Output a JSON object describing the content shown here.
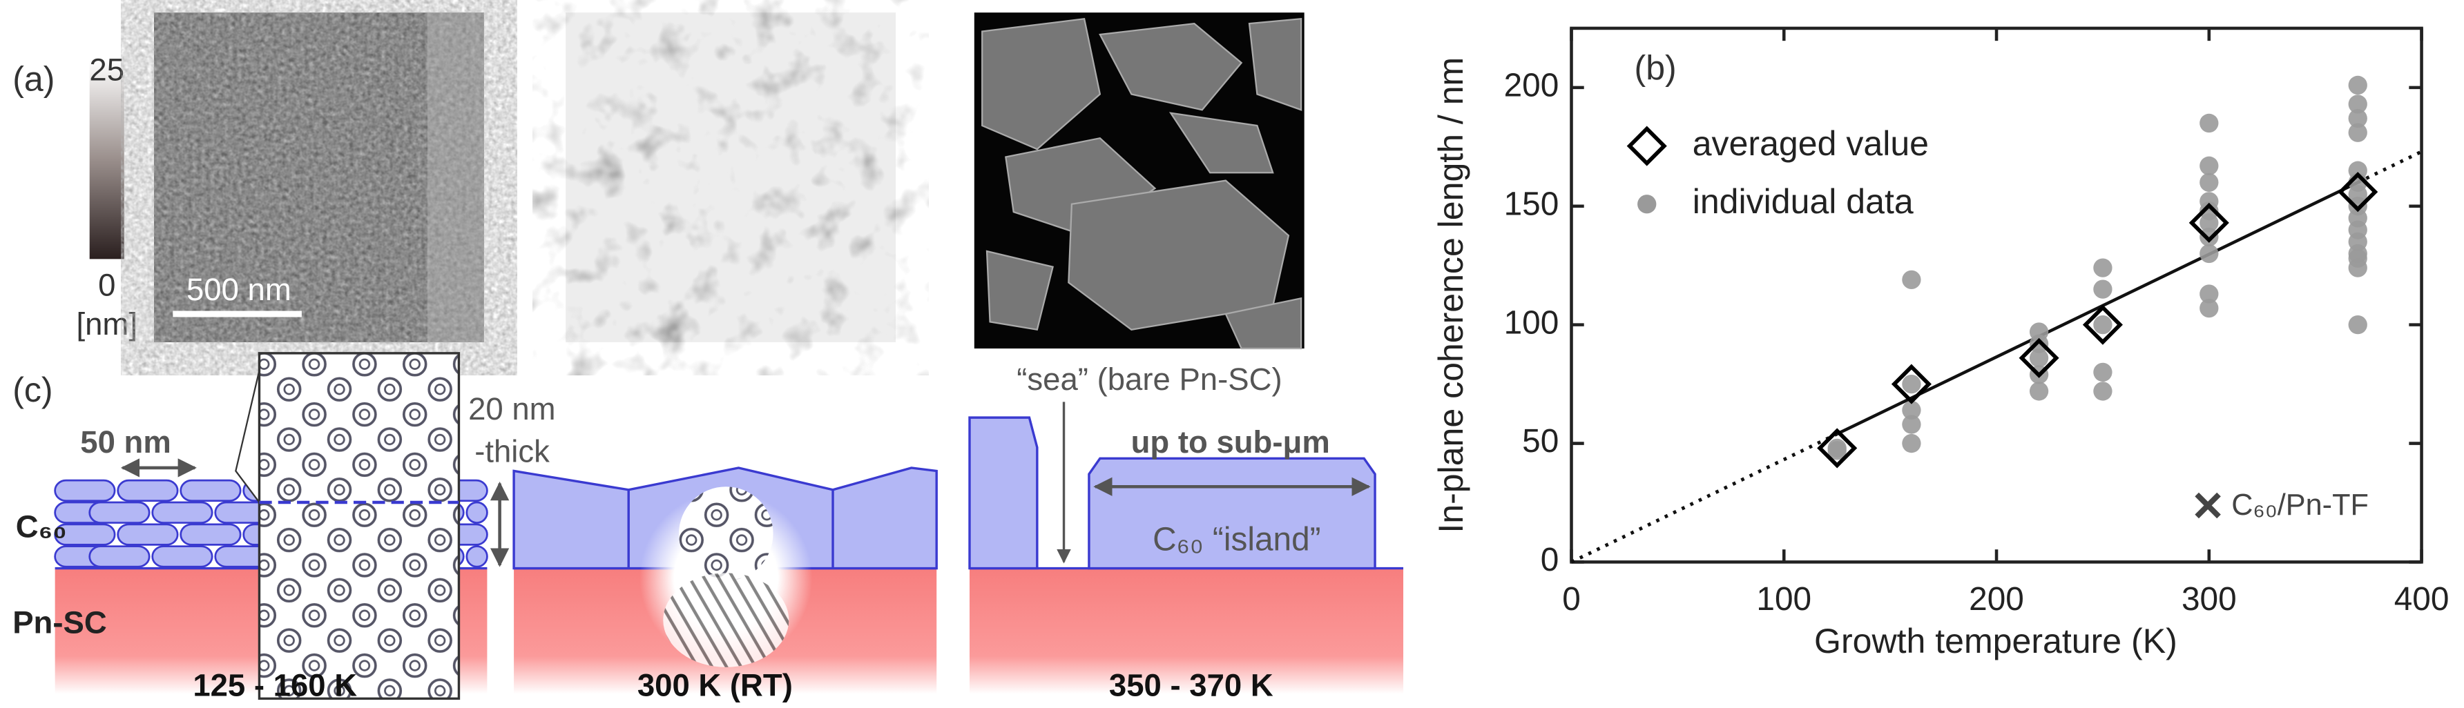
{
  "panels": {
    "a": {
      "label": "(a)",
      "cbar_max": "25",
      "cbar_min": "0",
      "cbar_unit": "[nm]",
      "scale_bar": "500 nm"
    },
    "c": {
      "label": "(c)",
      "width_label": "50 nm",
      "thick_label_1": "20 nm",
      "thick_label_2": "-thick",
      "c60": "C₆₀",
      "substrate": "Pn-SC",
      "sea": "“sea” (bare Pn-SC)",
      "island_size": "up to sub-μm",
      "island": "C₆₀ “island”",
      "temp_low": "125 - 160 K",
      "temp_mid": "300 K (RT)",
      "temp_high": "350 - 370 K"
    }
  },
  "chart_data": {
    "type": "scatter",
    "panel_label": "(b)",
    "x_label": "Growth temperature (K)",
    "y_label": "In-plane coherence length / nm",
    "xlim": [
      0,
      400
    ],
    "ylim": [
      0,
      225
    ],
    "xticks": [
      0,
      100,
      200,
      300,
      400
    ],
    "yticks": [
      0,
      50,
      100,
      150,
      200
    ],
    "series": [
      {
        "name": "averaged value",
        "marker": "diamond",
        "color": "#000000",
        "x": [
          125,
          160,
          220,
          250,
          300,
          370
        ],
        "values": [
          48,
          75,
          86,
          100,
          143,
          156
        ]
      },
      {
        "name": "individual data",
        "marker": "circle",
        "color": "#9a9a9a",
        "x": [
          125,
          125,
          160,
          160,
          160,
          160,
          160,
          220,
          220,
          220,
          220,
          220,
          250,
          250,
          250,
          250,
          250,
          300,
          300,
          300,
          300,
          300,
          300,
          300,
          300,
          300,
          300,
          370,
          370,
          370,
          370,
          370,
          370,
          370,
          370,
          370,
          370,
          370,
          370,
          370,
          370,
          370
        ],
        "values": [
          48,
          47,
          119,
          64,
          58,
          50,
          75,
          97,
          92,
          86,
          79,
          72,
          124,
          115,
          100,
          80,
          72,
          185,
          167,
          160,
          152,
          148,
          143,
          137,
          130,
          113,
          107,
          201,
          193,
          187,
          181,
          165,
          160,
          155,
          150,
          145,
          140,
          135,
          130,
          128,
          124,
          100
        ]
      }
    ],
    "fit": {
      "x": [
        0,
        125,
        370,
        400
      ],
      "values": [
        0,
        54,
        160,
        173
      ]
    },
    "annotation": "C₆₀/Pn-TF"
  }
}
